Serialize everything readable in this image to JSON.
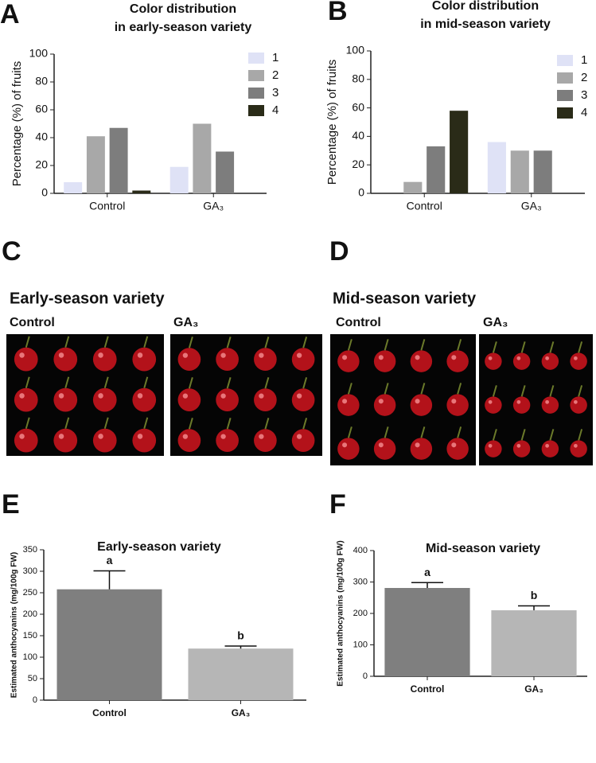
{
  "chart_data": [
    {
      "type": "bar",
      "panel": "A",
      "title": [
        "Color distribution",
        "in early-season variety"
      ],
      "y_label": "Percentage (%) of fruits",
      "categories": [
        "Control",
        "GA₃"
      ],
      "ylim": [
        0,
        100
      ],
      "yticks": [
        0,
        20,
        40,
        60,
        80,
        100
      ],
      "legend": "upper right",
      "series": [
        {
          "name": "1",
          "color": "#dfe2f6",
          "values": [
            8,
            19
          ]
        },
        {
          "name": "2",
          "color": "#a8a8a8",
          "values": [
            41,
            50
          ]
        },
        {
          "name": "3",
          "color": "#7d7d7d",
          "values": [
            47,
            30
          ]
        },
        {
          "name": "4",
          "color": "#2a2b18",
          "values": [
            2,
            0
          ]
        }
      ]
    },
    {
      "type": "bar",
      "panel": "B",
      "title": [
        "Color distribution",
        "in mid-season variety"
      ],
      "y_label": "Percentage (%) of fruits",
      "categories": [
        "Control",
        "GA₃"
      ],
      "ylim": [
        0,
        100
      ],
      "yticks": [
        0,
        20,
        40,
        60,
        80,
        100
      ],
      "legend": "upper right",
      "series": [
        {
          "name": "1",
          "color": "#dfe2f6",
          "values": [
            0,
            36
          ]
        },
        {
          "name": "2",
          "color": "#a8a8a8",
          "values": [
            8,
            30
          ]
        },
        {
          "name": "3",
          "color": "#7d7d7d",
          "values": [
            33,
            30
          ]
        },
        {
          "name": "4",
          "color": "#2a2b18",
          "values": [
            58,
            0
          ]
        }
      ]
    },
    {
      "type": "bar",
      "panel": "E",
      "title": "Early-season variety",
      "y_label": "Estimated anthocyanins (mg/100g FW)",
      "categories": [
        "Control",
        "GA₃"
      ],
      "values": [
        258,
        120
      ],
      "errors": [
        43,
        6
      ],
      "annotations": [
        "a",
        "b"
      ],
      "colors": [
        "#7f7f7f",
        "#b6b6b6"
      ],
      "ylim": [
        0,
        350
      ],
      "yticks": [
        0,
        50,
        100,
        150,
        200,
        250,
        300,
        350
      ]
    },
    {
      "type": "bar",
      "panel": "F",
      "title": "Mid-season variety",
      "y_label": "Estimated anthocyanins (mg/100g FW)",
      "categories": [
        "Control",
        "GA₃"
      ],
      "values": [
        281,
        210
      ],
      "errors": [
        17,
        14
      ],
      "annotations": [
        "a",
        "b"
      ],
      "colors": [
        "#7f7f7f",
        "#b6b6b6"
      ],
      "ylim": [
        0,
        400
      ],
      "yticks": [
        0,
        100,
        200,
        300,
        400
      ]
    }
  ],
  "photo_panels": [
    {
      "panel": "C",
      "title": "Early-season variety",
      "labels": [
        "Control",
        "GA₃"
      ]
    },
    {
      "panel": "D",
      "title": "Mid-season variety",
      "labels": [
        "Control",
        "GA₃"
      ]
    }
  ]
}
